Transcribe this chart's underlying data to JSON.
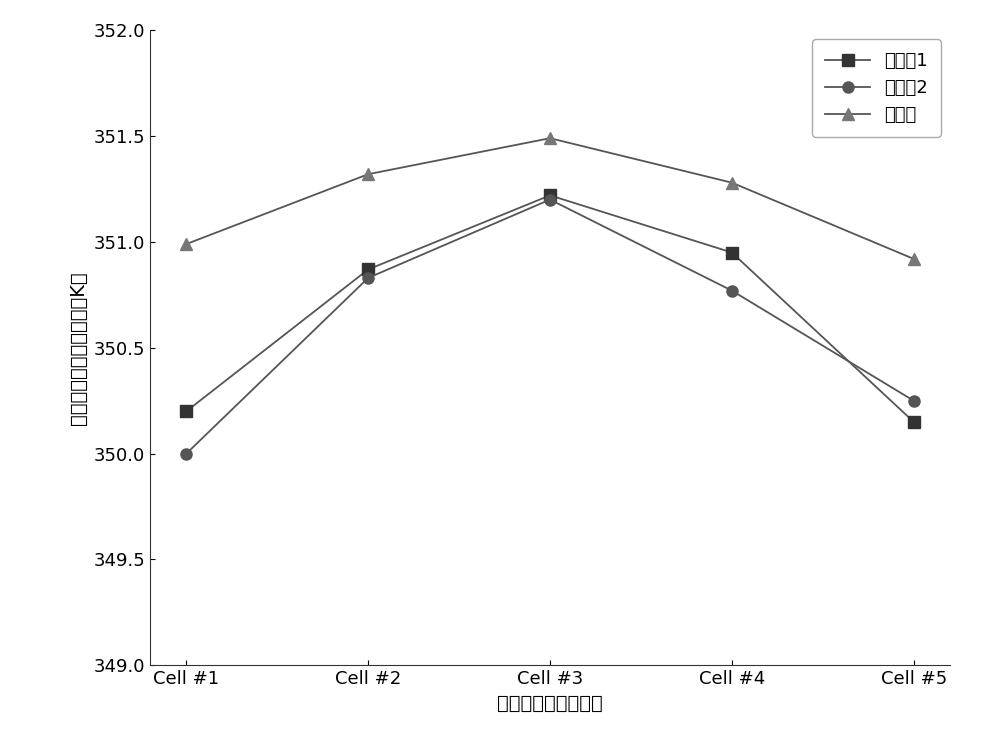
{
  "x_labels": [
    "Cell #1",
    "Cell #2",
    "Cell #3",
    "Cell #4",
    "Cell #5"
  ],
  "series": [
    {
      "name": "对比备1",
      "values": [
        350.2,
        350.87,
        351.22,
        350.95,
        350.15
      ],
      "marker": "s",
      "color": "#333333"
    },
    {
      "name": "对比备2",
      "values": [
        350.0,
        350.83,
        351.2,
        350.77,
        350.25
      ],
      "marker": "o",
      "color": "#555555"
    },
    {
      "name": "实施例",
      "values": [
        350.99,
        351.32,
        351.49,
        351.28,
        350.92
      ],
      "marker": "^",
      "color": "#777777"
    }
  ],
  "xlabel": "电堆内单电池的编号",
  "ylabel": "阴极厅化层的平均温度（K）",
  "ylim": [
    349.0,
    352.0
  ],
  "yticks": [
    349.0,
    349.5,
    350.0,
    350.5,
    351.0,
    351.5,
    352.0
  ],
  "legend_loc": "upper right",
  "line_color": "#555555",
  "markersize": 8,
  "linewidth": 1.3,
  "font_size_ticks": 13,
  "font_size_labels": 14,
  "font_size_legend": 13,
  "background_color": "#ffffff"
}
